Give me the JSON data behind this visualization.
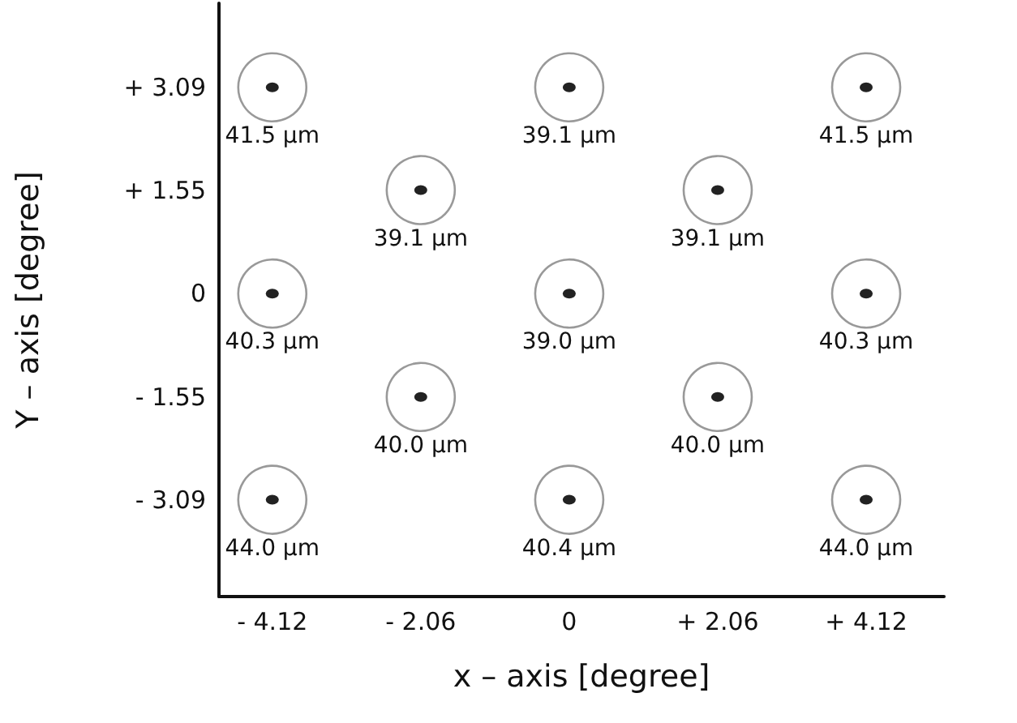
{
  "chart_data": {
    "type": "scatter",
    "xlabel": "x – axis [degree]",
    "ylabel": "Y – axis [degree]",
    "xlim": [
      -4.86,
      5.2
    ],
    "ylim": [
      -4.54,
      4.35
    ],
    "xticks": [
      {
        "value": -4.12,
        "label": "- 4.12"
      },
      {
        "value": -2.06,
        "label": "- 2.06"
      },
      {
        "value": 0,
        "label": "0"
      },
      {
        "value": 2.06,
        "label": "+ 2.06"
      },
      {
        "value": 4.12,
        "label": "+ 4.12"
      }
    ],
    "yticks": [
      {
        "value": -3.09,
        "label": "- 3.09"
      },
      {
        "value": -1.55,
        "label": "- 1.55"
      },
      {
        "value": 0,
        "label": "0"
      },
      {
        "value": 1.55,
        "label": "+ 1.55"
      },
      {
        "value": 3.09,
        "label": "+ 3.09"
      }
    ],
    "series": [
      {
        "color": "#808080",
        "x": [
          -4.12,
          0,
          4.12,
          -2.06,
          2.06,
          -4.12,
          0,
          4.12,
          -2.06,
          2.06,
          -4.12,
          0,
          4.12
        ],
        "values": [
          3.09,
          3.09,
          3.09,
          1.55,
          1.55,
          0,
          0,
          0,
          -1.55,
          -1.55,
          -3.09,
          -3.09,
          -3.09
        ]
      }
    ],
    "annotations": [
      {
        "text": "41.5 μm",
        "x": -4.12,
        "y": 3.09
      },
      {
        "text": "39.1 μm",
        "x": 0,
        "y": 3.09
      },
      {
        "text": "41.5 μm",
        "x": 4.12,
        "y": 3.09
      },
      {
        "text": "39.1 μm",
        "x": -2.06,
        "y": 1.55
      },
      {
        "text": "39.1 μm",
        "x": 2.06,
        "y": 1.55
      },
      {
        "text": "40.3 μm",
        "x": -4.12,
        "y": 0
      },
      {
        "text": "39.0 μm",
        "x": 0,
        "y": 0
      },
      {
        "text": "40.3 μm",
        "x": 4.12,
        "y": 0
      },
      {
        "text": "40.0 μm",
        "x": -2.06,
        "y": -1.55
      },
      {
        "text": "40.0 μm",
        "x": 2.06,
        "y": -1.55
      },
      {
        "text": "44.0 μm",
        "x": -4.12,
        "y": -3.09
      },
      {
        "text": "40.4 μm",
        "x": 0,
        "y": -3.09
      },
      {
        "text": "44.0 μm",
        "x": 4.12,
        "y": -3.09
      }
    ],
    "marker": "circle",
    "grid": false
  }
}
